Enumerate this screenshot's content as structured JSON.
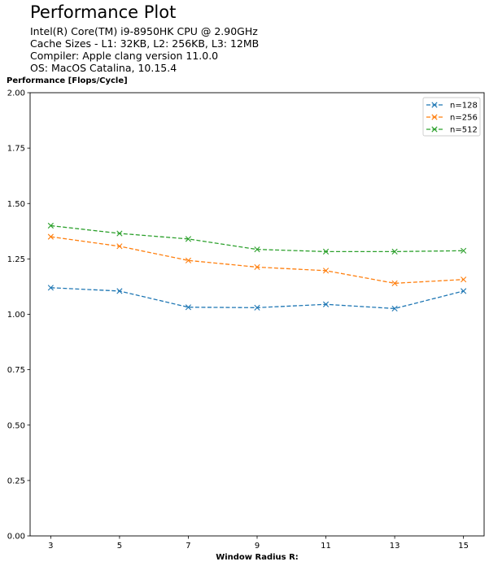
{
  "chart_data": {
    "type": "line",
    "title": "Performance Plot",
    "subtitle_lines": [
      "Intel(R) Core(TM) i9-8950HK CPU @ 2.90GHz",
      "Cache Sizes - L1: 32KB, L2: 256KB, L3: 12MB",
      "Compiler: Apple clang version 11.0.0",
      "OS: MacOS Catalina, 10.15.4"
    ],
    "xlabel": "Window Radius R:",
    "ylabel": "Performance [Flops/Cycle]",
    "x": [
      3,
      5,
      7,
      9,
      11,
      13,
      15
    ],
    "xticks": [
      "3",
      "5",
      "7",
      "9",
      "11",
      "13",
      "15"
    ],
    "xlim": [
      2.4,
      15.6
    ],
    "ylim": [
      0,
      2
    ],
    "yticks": [
      "0.00",
      "0.25",
      "0.50",
      "0.75",
      "1.00",
      "1.25",
      "1.50",
      "1.75",
      "2.00"
    ],
    "grid": false,
    "legend_position": "top-right",
    "line_style": "dashed",
    "marker": "x",
    "series": [
      {
        "name": "n=128",
        "color": "#1f77b4",
        "values": [
          1.12,
          1.105,
          1.032,
          1.03,
          1.045,
          1.026,
          1.105
        ]
      },
      {
        "name": "n=256",
        "color": "#ff7f0e",
        "values": [
          1.35,
          1.307,
          1.243,
          1.213,
          1.197,
          1.14,
          1.157
        ]
      },
      {
        "name": "n=512",
        "color": "#2ca02c",
        "values": [
          1.4,
          1.365,
          1.34,
          1.293,
          1.283,
          1.283,
          1.287
        ]
      }
    ]
  }
}
